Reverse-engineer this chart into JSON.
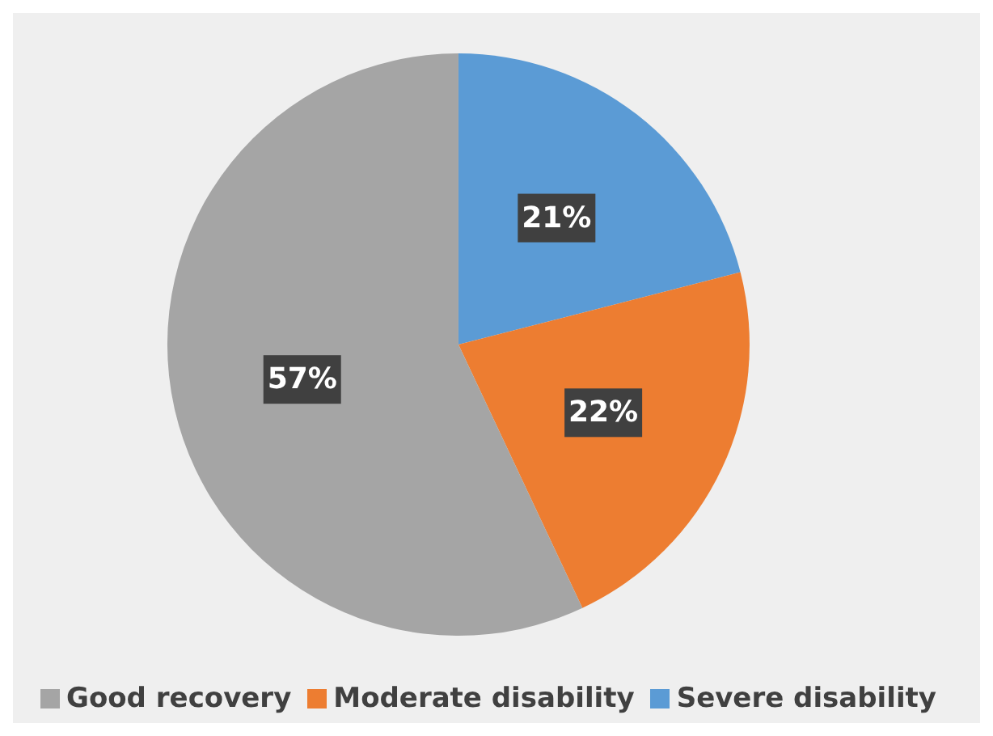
{
  "chart_data": {
    "type": "pie",
    "categories": [
      "Severe disability",
      "Moderate disability",
      "Good recovery"
    ],
    "values": [
      21,
      22,
      57
    ],
    "colors": [
      "#5b9bd5",
      "#ed7d31",
      "#a5a5a5"
    ],
    "value_labels": [
      "21%",
      "22%",
      "57%"
    ],
    "legend": "bottom"
  }
}
